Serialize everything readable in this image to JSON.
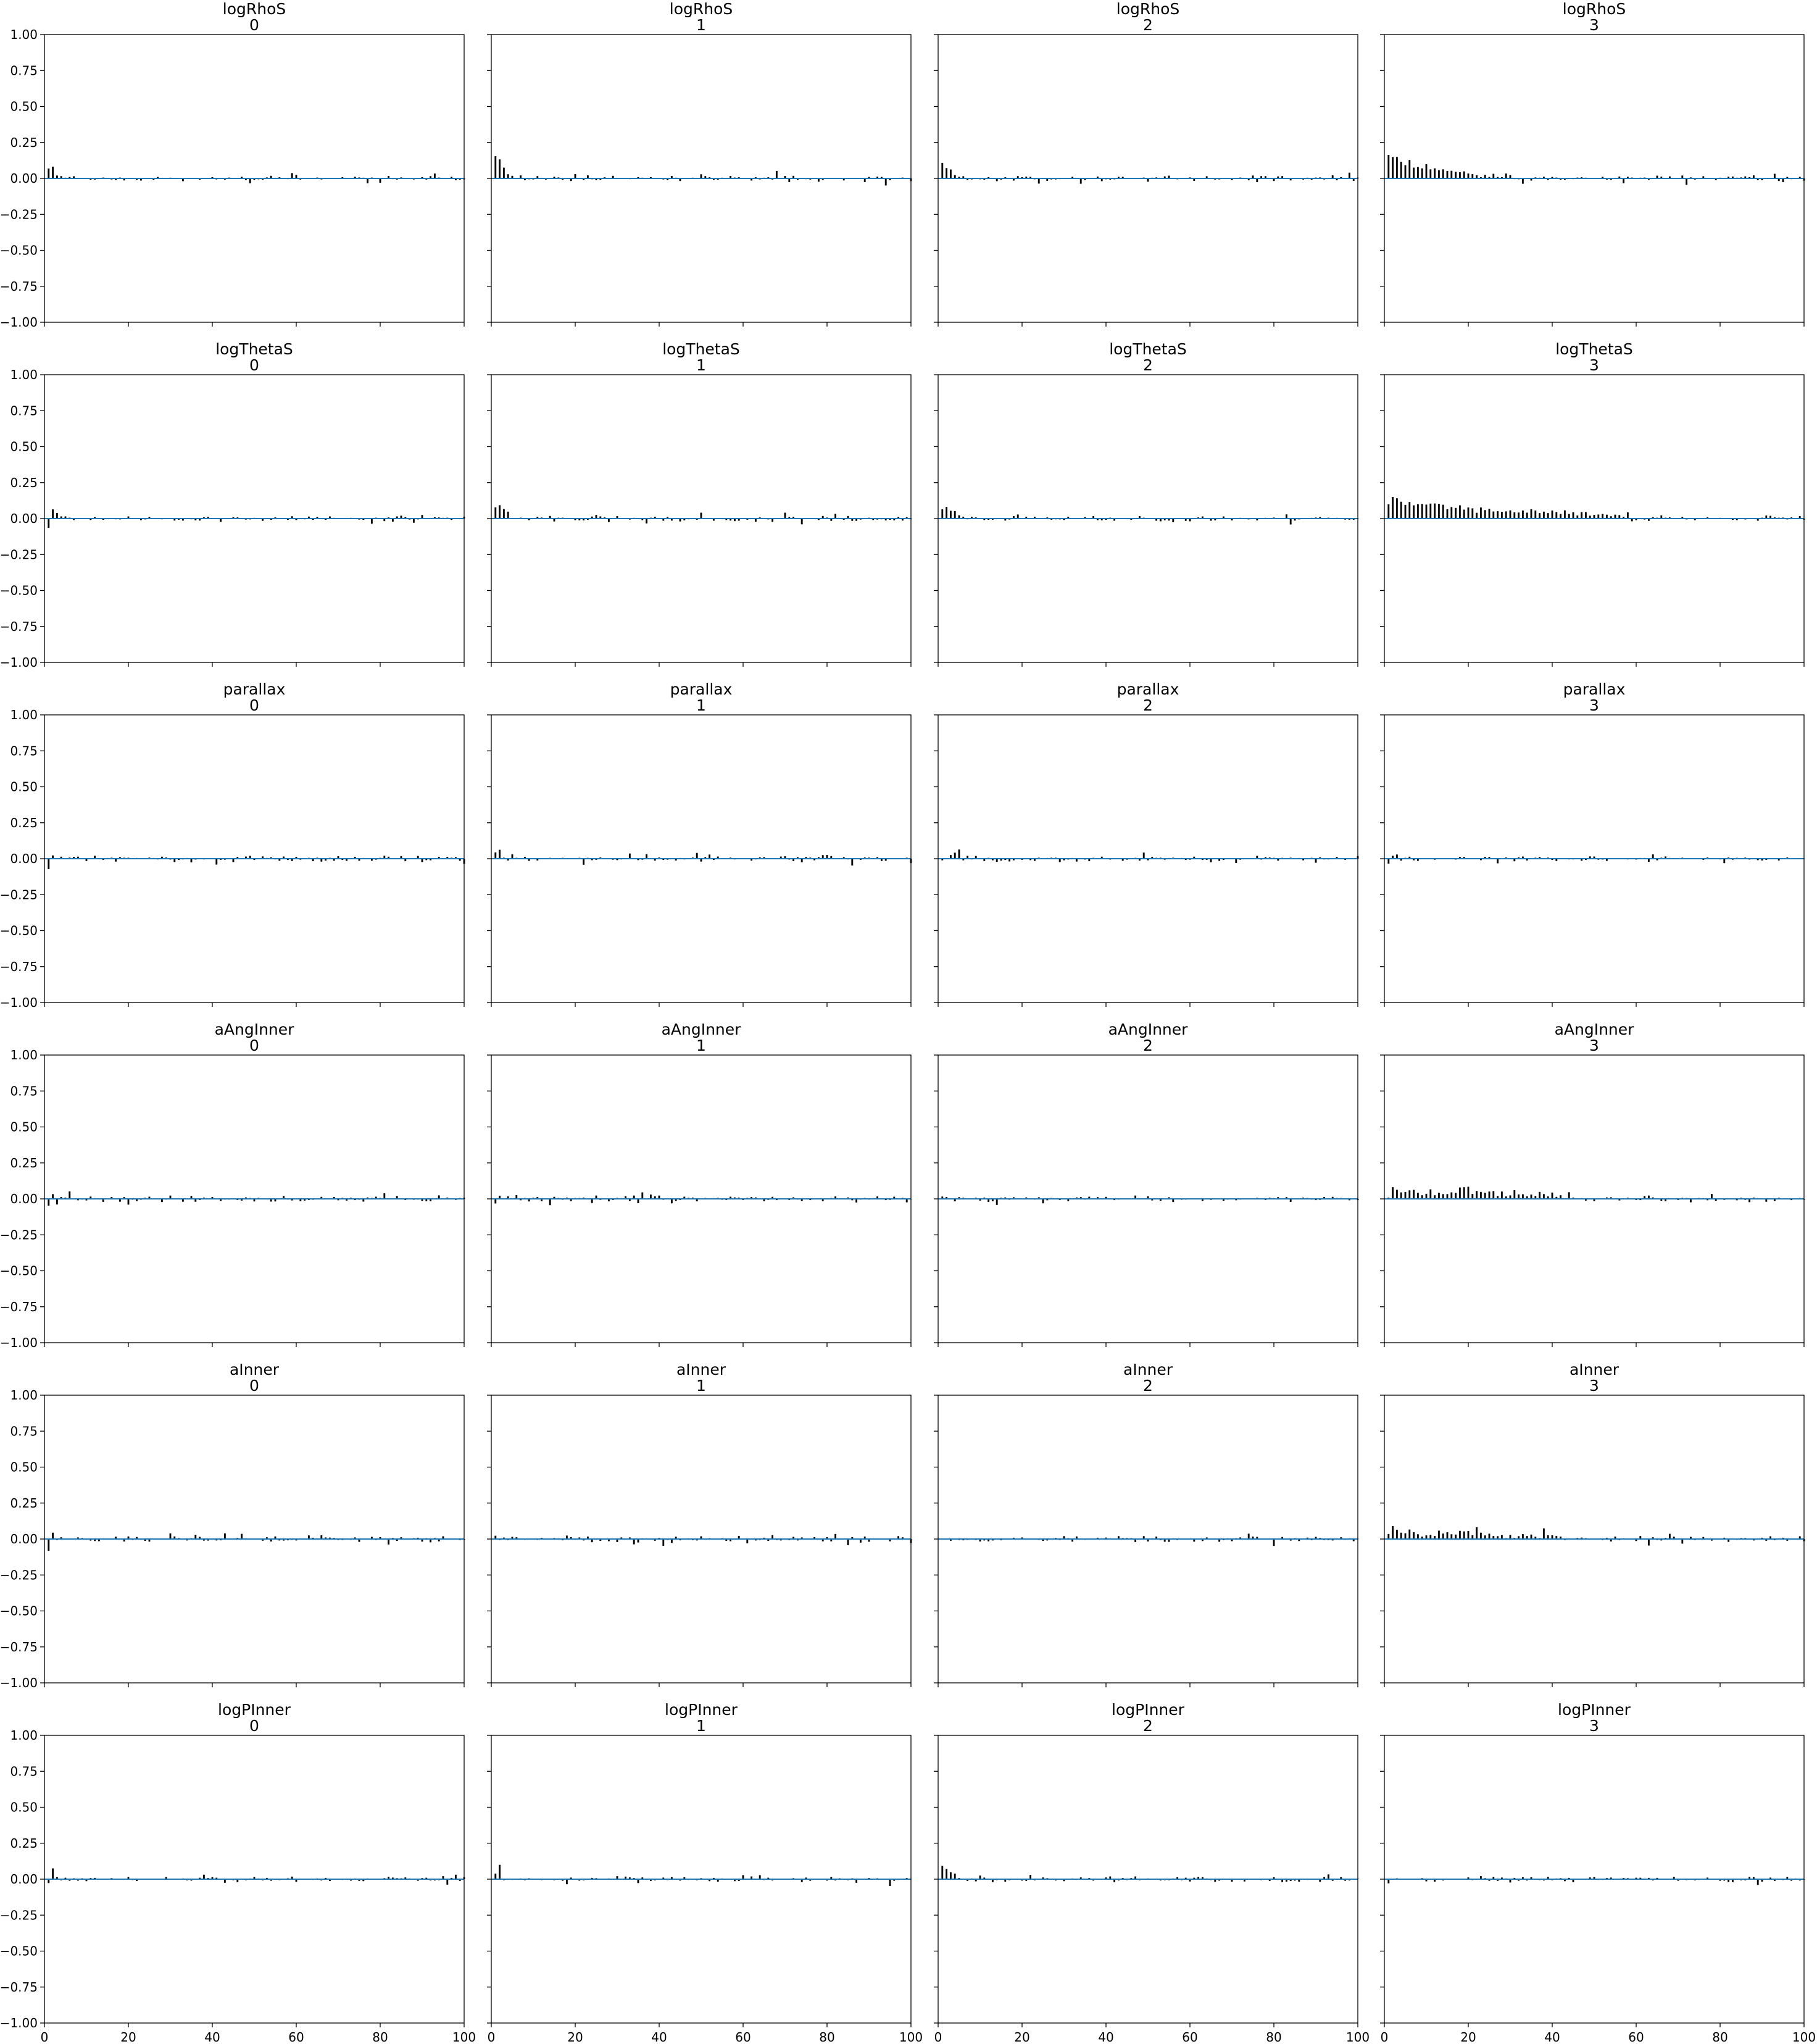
{
  "figure": {
    "ncols": 4,
    "nrows": 6,
    "xlim": [
      0,
      100
    ],
    "ylim": [
      -1,
      1
    ],
    "xticks": [
      0,
      20,
      40,
      60,
      80,
      100
    ],
    "xtick_labels": [
      "0",
      "20",
      "40",
      "60",
      "80",
      "100"
    ],
    "yticks": [
      1,
      0.75,
      0.5,
      0.25,
      0,
      -0.25,
      -0.5,
      -0.75,
      -1
    ],
    "ytick_labels": [
      "1.00",
      "0.75",
      "0.50",
      "0.25",
      "0.00",
      "−0.25",
      "−0.50",
      "−0.75",
      "−1.00"
    ],
    "bar_color": "#000000",
    "zero_line_color": "#1f77b4",
    "sharex": true,
    "sharey": true,
    "grid": false
  },
  "chart_data": [
    {
      "type": "bar",
      "title": "logRhoS",
      "subtitle": "0",
      "lags": 100,
      "head": [
        0.08,
        0.08,
        0.03,
        0.02,
        0.01,
        0.01,
        0.02,
        0.0,
        0.01,
        0.0
      ],
      "noise": 0.012,
      "seed": 11
    },
    {
      "type": "bar",
      "title": "logRhoS",
      "subtitle": "1",
      "lags": 100,
      "head": [
        0.17,
        0.14,
        0.07,
        0.03,
        0.02,
        0.01,
        0.01,
        0.0
      ],
      "noise": 0.013,
      "seed": 12
    },
    {
      "type": "bar",
      "title": "logRhoS",
      "subtitle": "2",
      "lags": 100,
      "head": [
        0.11,
        0.09,
        0.06,
        0.02,
        0.01,
        0.01,
        0.0
      ],
      "noise": 0.013,
      "seed": 13
    },
    {
      "type": "bar",
      "title": "logRhoS",
      "subtitle": "3",
      "lags": 100,
      "head": [
        0.17,
        0.16,
        0.15,
        0.13,
        0.11,
        0.13,
        0.09,
        0.08,
        0.07,
        0.09,
        0.06,
        0.06,
        0.05,
        0.06,
        0.05,
        0.05,
        0.04,
        0.05,
        0.05,
        0.04,
        0.04,
        0.03,
        0.03,
        0.04,
        0.02,
        0.03,
        0.02,
        0.02,
        0.02,
        0.02
      ],
      "noise": 0.015,
      "seed": 14
    },
    {
      "type": "bar",
      "title": "logThetaS",
      "subtitle": "0",
      "lags": 100,
      "head": [
        -0.05,
        0.07,
        0.04,
        0.02,
        0.01,
        0.0
      ],
      "noise": 0.012,
      "seed": 21
    },
    {
      "type": "bar",
      "title": "logThetaS",
      "subtitle": "1",
      "lags": 100,
      "head": [
        0.08,
        0.11,
        0.05,
        0.03,
        0.01,
        0.0
      ],
      "noise": 0.013,
      "seed": 22
    },
    {
      "type": "bar",
      "title": "logThetaS",
      "subtitle": "2",
      "lags": 100,
      "head": [
        0.07,
        0.07,
        0.06,
        0.05,
        0.03,
        0.02,
        0.01,
        0.0
      ],
      "noise": 0.013,
      "seed": 23
    },
    {
      "type": "bar",
      "title": "logThetaS",
      "subtitle": "3",
      "lags": 100,
      "head": [
        0.11,
        0.15,
        0.13,
        0.11,
        0.1,
        0.11,
        0.09,
        0.1,
        0.09,
        0.09,
        0.1,
        0.09,
        0.1,
        0.1,
        0.08,
        0.09,
        0.08,
        0.1,
        0.07,
        0.08,
        0.08,
        0.06,
        0.07,
        0.06,
        0.06,
        0.05,
        0.06,
        0.05,
        0.06,
        0.05,
        0.05,
        0.04,
        0.05,
        0.04,
        0.06,
        0.05,
        0.04,
        0.04,
        0.04,
        0.06,
        0.04,
        0.05,
        0.04,
        0.04,
        0.06,
        0.03,
        0.04,
        0.03,
        0.03,
        0.04,
        0.02,
        0.03,
        0.02,
        0.02,
        0.02,
        0.03,
        0.02,
        0.02
      ],
      "noise": 0.014,
      "seed": 24
    },
    {
      "type": "bar",
      "title": "parallax",
      "subtitle": "0",
      "lags": 100,
      "head": [
        -0.05,
        0.02,
        0.01,
        0.0
      ],
      "noise": 0.014,
      "seed": 31
    },
    {
      "type": "bar",
      "title": "parallax",
      "subtitle": "1",
      "lags": 100,
      "head": [
        0.05,
        0.05,
        0.0,
        -0.01,
        0.03,
        0.0
      ],
      "noise": 0.013,
      "seed": 32
    },
    {
      "type": "bar",
      "title": "parallax",
      "subtitle": "2",
      "lags": 100,
      "head": [
        0.0,
        0.0,
        0.02,
        0.04,
        0.06,
        -0.03,
        0.02,
        0.0
      ],
      "noise": 0.013,
      "seed": 33
    },
    {
      "type": "bar",
      "title": "parallax",
      "subtitle": "3",
      "lags": 100,
      "head": [
        -0.02,
        0.03,
        0.01,
        0.0
      ],
      "noise": 0.012,
      "seed": 34
    },
    {
      "type": "bar",
      "title": "aAngInner",
      "subtitle": "0",
      "lags": 100,
      "head": [
        -0.06,
        0.04,
        -0.02,
        0.0
      ],
      "noise": 0.014,
      "seed": 41
    },
    {
      "type": "bar",
      "title": "aAngInner",
      "subtitle": "1",
      "lags": 100,
      "head": [
        -0.02,
        0.04,
        0.0
      ],
      "noise": 0.014,
      "seed": 42
    },
    {
      "type": "bar",
      "title": "aAngInner",
      "subtitle": "2",
      "lags": 100,
      "head": [
        0.03,
        0.02,
        0.0
      ],
      "noise": 0.012,
      "seed": 43
    },
    {
      "type": "bar",
      "title": "aAngInner",
      "subtitle": "3",
      "lags": 100,
      "head": [
        0.01,
        0.08,
        0.05,
        0.04,
        0.05,
        0.06,
        0.05,
        0.04,
        0.03,
        0.05,
        0.06,
        0.04,
        0.05,
        0.05,
        0.04,
        0.06,
        0.05,
        0.07,
        0.06,
        0.08,
        0.04,
        0.06,
        0.05,
        0.04,
        0.05,
        0.04,
        0.03,
        0.04,
        0.03,
        0.03,
        0.05,
        0.03,
        0.02,
        0.03,
        0.02,
        0.02,
        0.03,
        0.02,
        0.02,
        0.02,
        0.01,
        0.02
      ],
      "noise": 0.014,
      "seed": 44
    },
    {
      "type": "bar",
      "title": "aInner",
      "subtitle": "0",
      "lags": 100,
      "head": [
        -0.09,
        0.04,
        0.0
      ],
      "noise": 0.013,
      "seed": 51
    },
    {
      "type": "bar",
      "title": "aInner",
      "subtitle": "1",
      "lags": 100,
      "head": [
        0.02,
        0.0
      ],
      "noise": 0.013,
      "seed": 52
    },
    {
      "type": "bar",
      "title": "aInner",
      "subtitle": "2",
      "lags": 100,
      "head": [
        0.02,
        0.0
      ],
      "noise": 0.013,
      "seed": 53
    },
    {
      "type": "bar",
      "title": "aInner",
      "subtitle": "3",
      "lags": 100,
      "head": [
        0.04,
        0.08,
        0.06,
        0.04,
        0.05,
        0.06,
        0.04,
        0.03,
        0.03,
        0.04,
        0.04,
        0.03,
        0.05,
        0.04,
        0.03,
        0.04,
        0.03,
        0.05,
        0.04,
        0.05,
        0.05,
        0.06,
        0.04,
        0.03,
        0.04,
        0.03,
        0.03,
        0.03,
        0.02,
        0.03,
        0.02,
        0.02,
        0.03,
        0.02,
        0.02,
        0.02,
        0.02,
        0.06,
        0.02,
        0.02,
        0.01,
        0.02
      ],
      "noise": 0.013,
      "seed": 54
    },
    {
      "type": "bar",
      "title": "logPInner",
      "subtitle": "0",
      "lags": 100,
      "head": [
        -0.03,
        0.08,
        0.01,
        0.0
      ],
      "noise": 0.012,
      "seed": 61
    },
    {
      "type": "bar",
      "title": "logPInner",
      "subtitle": "1",
      "lags": 100,
      "head": [
        0.04,
        0.08,
        0.01,
        0.0
      ],
      "noise": 0.012,
      "seed": 62
    },
    {
      "type": "bar",
      "title": "logPInner",
      "subtitle": "2",
      "lags": 100,
      "head": [
        0.08,
        0.06,
        0.05,
        0.04,
        0.01,
        0.0
      ],
      "noise": 0.012,
      "seed": 63
    },
    {
      "type": "bar",
      "title": "logPInner",
      "subtitle": "3",
      "lags": 100,
      "head": [
        -0.02,
        0.02,
        0.01,
        0.0
      ],
      "noise": 0.012,
      "seed": 64
    }
  ]
}
